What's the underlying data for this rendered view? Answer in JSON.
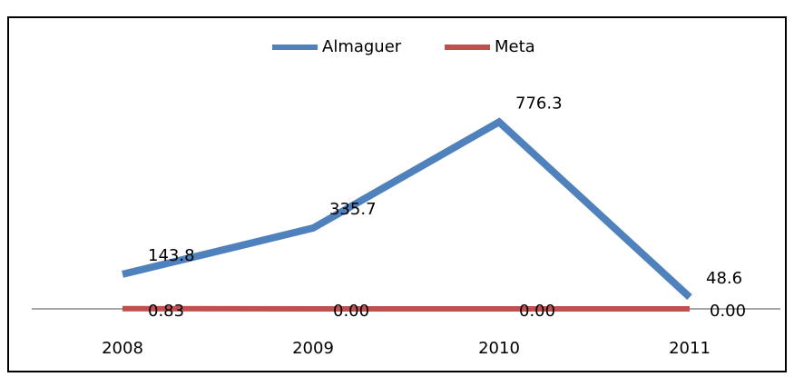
{
  "chart_data": {
    "type": "line",
    "categories": [
      "2008",
      "2009",
      "2010",
      "2011"
    ],
    "series": [
      {
        "name": "Almaguer",
        "color": "#4f81bd",
        "values": [
          143.8,
          335.7,
          776.3,
          48.6
        ]
      },
      {
        "name": "Meta",
        "color": "#c0504d",
        "values": [
          0.83,
          0,
          0,
          0
        ],
        "value_labels": [
          "0.83",
          "0.00",
          "0.00",
          "0.00"
        ]
      }
    ],
    "ylim": [
      0,
      800
    ],
    "legend": "top"
  }
}
